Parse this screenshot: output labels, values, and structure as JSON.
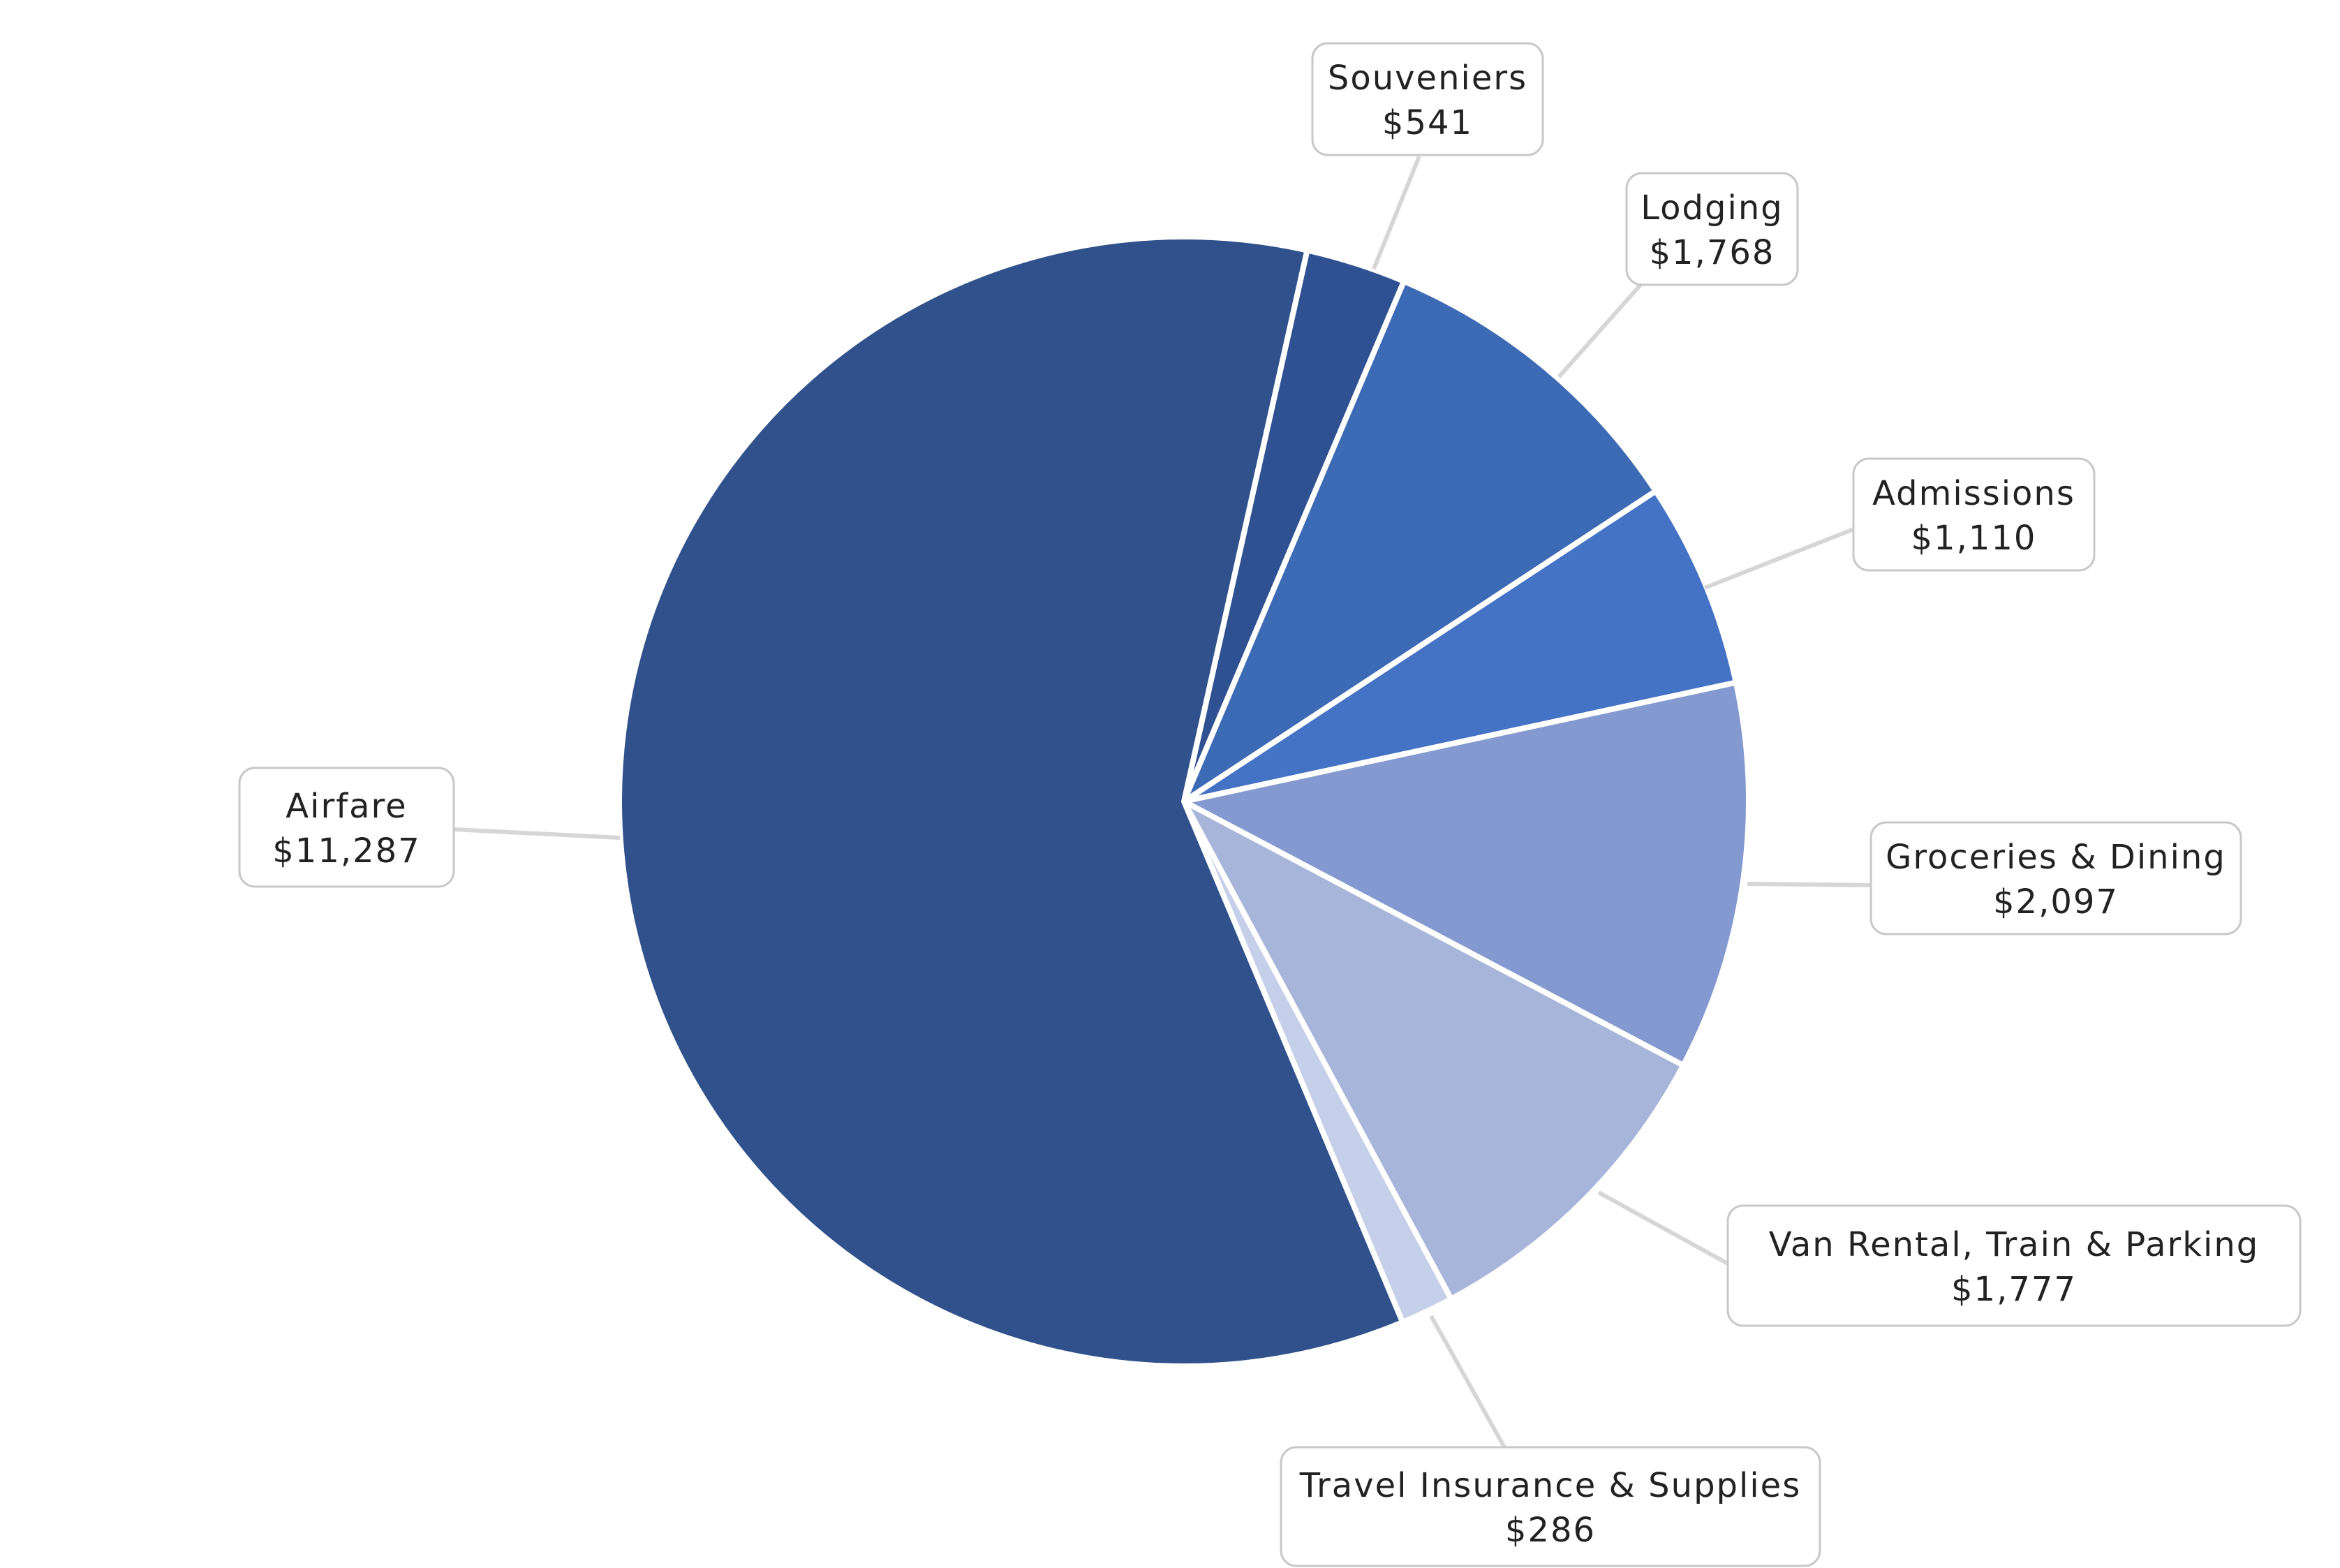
{
  "chart_data": {
    "type": "pie",
    "start_angle_deg": 12.6,
    "direction": "clockwise",
    "slices": [
      {
        "label": "Souveniers",
        "value": 541,
        "value_label": "$541",
        "color": "#2f5191"
      },
      {
        "label": "Lodging",
        "value": 1768,
        "value_label": "$1,768",
        "color": "#3d6ab4"
      },
      {
        "label": "Admissions",
        "value": 1110,
        "value_label": "$1,110",
        "color": "#4472c4"
      },
      {
        "label": "Groceries & Dining",
        "value": 2097,
        "value_label": "$2,097",
        "color": "#8399d0"
      },
      {
        "label": "Van Rental, Train & Parking",
        "value": 1777,
        "value_label": "$1,777",
        "color": "#a8b5da"
      },
      {
        "label": "Travel Insurance & Supplies",
        "value": 286,
        "value_label": "$286",
        "color": "#c6cfe9"
      },
      {
        "label": "Airfare",
        "value": 11287,
        "value_label": "$11,287",
        "color": "#30518c"
      }
    ]
  }
}
